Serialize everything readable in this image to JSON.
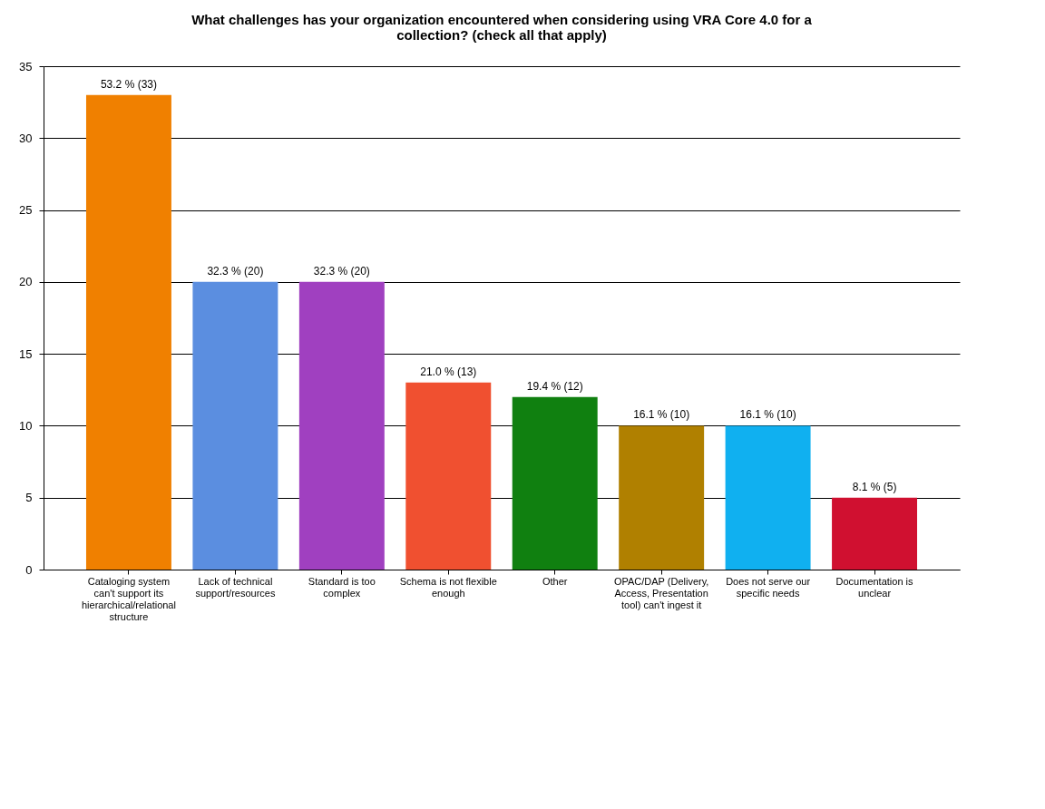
{
  "chart_data": {
    "type": "bar",
    "title": "What challenges has your organization encountered when considering using VRA Core 4.0 for a collection? (check all that apply)",
    "categories": [
      "Cataloging system can't support its hierarchical/relational structure",
      "Lack of technical support/resources",
      "Standard is too complex",
      "Schema is not flexible enough",
      "Other",
      "OPAC/DAP (Delivery, Access, Presentation tool) can't ingest it",
      "Does not serve our specific needs",
      "Documentation is unclear"
    ],
    "values": [
      33,
      20,
      20,
      13,
      12,
      10,
      10,
      5
    ],
    "value_labels": [
      "53.2 % (33)",
      "32.3 % (20)",
      "32.3 % (20)",
      "21.0 % (13)",
      "19.4 % (12)",
      "16.1 % (10)",
      "16.1 % (10)",
      "8.1 % (5)"
    ],
    "colors": [
      "#f08000",
      "#5b8ee0",
      "#a040c0",
      "#f05030",
      "#108010",
      "#b08000",
      "#10b0f0",
      "#d01030"
    ],
    "ylim": [
      0,
      35
    ],
    "yticks": [
      0,
      5,
      10,
      15,
      20,
      25,
      30,
      35
    ],
    "grid": "y"
  }
}
